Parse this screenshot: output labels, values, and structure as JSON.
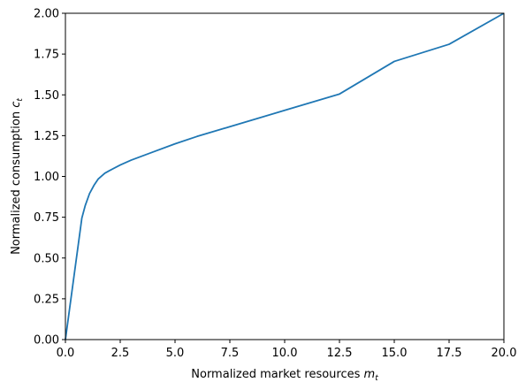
{
  "chart_data": {
    "type": "line",
    "title": "",
    "xlabel": {
      "prefix": "Normalized market resources ",
      "symbol": "m",
      "subscript": "t"
    },
    "ylabel": {
      "prefix": "Normalized consumption ",
      "symbol": "c",
      "subscript": "t"
    },
    "xlim": [
      0,
      20
    ],
    "ylim": [
      0,
      2
    ],
    "xticks": [
      0,
      2.5,
      5,
      7.5,
      10,
      12.5,
      15,
      17.5,
      20
    ],
    "xtick_labels": [
      "0.0",
      "2.5",
      "5.0",
      "7.5",
      "10.0",
      "12.5",
      "15.0",
      "17.5",
      "20.0"
    ],
    "yticks": [
      0,
      0.25,
      0.5,
      0.75,
      1.0,
      1.25,
      1.5,
      1.75,
      2.0
    ],
    "ytick_labels": [
      "0.00",
      "0.25",
      "0.50",
      "0.75",
      "1.00",
      "1.25",
      "1.50",
      "1.75",
      "2.00"
    ],
    "grid": false,
    "legend": "none",
    "series": [
      {
        "color": "#1f77b4",
        "x": [
          0.0,
          0.75,
          0.9,
          1.1,
          1.3,
          1.5,
          1.8,
          2.0,
          2.5,
          3.0,
          3.5,
          4.0,
          5.0,
          6.0,
          7.5,
          10.0,
          12.5,
          15.0,
          17.5,
          20.0
        ],
        "y": [
          0.0,
          0.745,
          0.82,
          0.895,
          0.945,
          0.985,
          1.02,
          1.035,
          1.07,
          1.1,
          1.125,
          1.15,
          1.2,
          1.245,
          1.305,
          1.405,
          1.505,
          1.705,
          1.81,
          2.0
        ]
      }
    ]
  }
}
